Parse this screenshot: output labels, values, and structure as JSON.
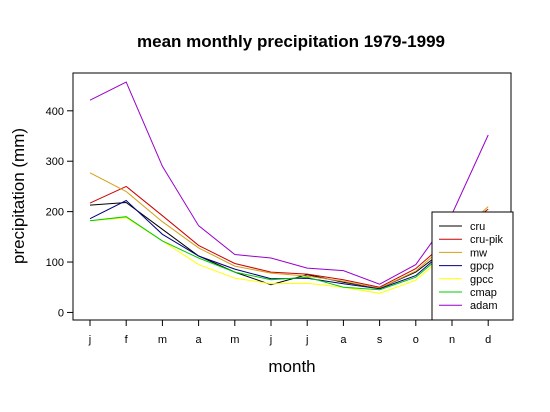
{
  "chart_data": {
    "type": "line",
    "title": "mean monthly precipitation 1979-1999",
    "xlabel": "month",
    "ylabel": "precipitation (mm)",
    "categories": [
      "j",
      "f",
      "m",
      "a",
      "m",
      "j",
      "j",
      "a",
      "s",
      "o",
      "n",
      "d"
    ],
    "ylim": [
      -15,
      475
    ],
    "yticks": [
      0,
      100,
      200,
      300,
      400
    ],
    "grid": false,
    "legend_position": "bottom-right",
    "series": [
      {
        "name": "cru",
        "color": "#000000",
        "values": [
          213,
          218,
          165,
          112,
          80,
          55,
          75,
          60,
          48,
          80,
          135,
          190
        ]
      },
      {
        "name": "cru-pik",
        "color": "#cc0000",
        "values": [
          217,
          250,
          192,
          133,
          97,
          80,
          76,
          65,
          50,
          87,
          150,
          205
        ]
      },
      {
        "name": "mw",
        "color": "#d4a017",
        "values": [
          277,
          240,
          180,
          128,
          92,
          78,
          72,
          62,
          48,
          82,
          145,
          210
        ]
      },
      {
        "name": "gpcp",
        "color": "#000080",
        "values": [
          186,
          222,
          155,
          112,
          86,
          67,
          68,
          57,
          47,
          73,
          135,
          195
        ]
      },
      {
        "name": "gpcc",
        "color": "#ffff00",
        "values": [
          182,
          188,
          142,
          95,
          68,
          57,
          58,
          50,
          38,
          64,
          125,
          185
        ]
      },
      {
        "name": "cmap",
        "color": "#00cc00",
        "values": [
          182,
          190,
          142,
          108,
          80,
          65,
          70,
          50,
          45,
          70,
          130,
          188
        ]
      },
      {
        "name": "adam",
        "color": "#9900cc",
        "values": [
          421,
          457,
          290,
          172,
          115,
          108,
          88,
          83,
          56,
          95,
          195,
          352
        ]
      }
    ]
  }
}
